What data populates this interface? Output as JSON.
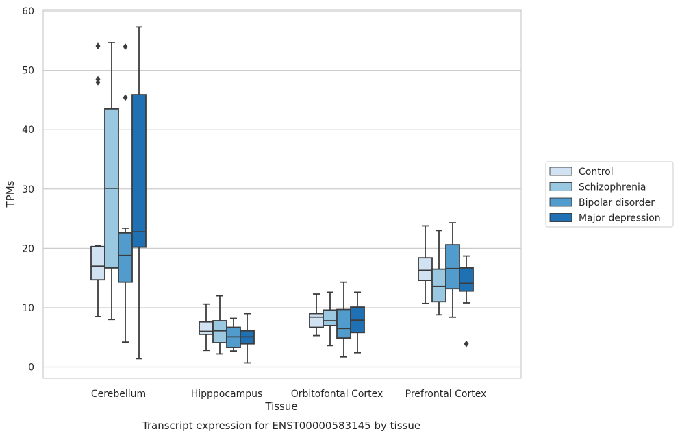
{
  "chart_data": {
    "type": "box",
    "xlabel": "Tissue",
    "ylabel": "TPMs",
    "caption": "Transcript expression for ENST00000583145 by tissue",
    "ylim": [
      -2,
      60.3
    ],
    "yticks": [
      0,
      10,
      20,
      30,
      40,
      50,
      60
    ],
    "grid": "horizontal",
    "legend_position": "right",
    "categories": [
      "Cerebellum",
      "Hipppocampus",
      "Orbitofontal Cortex",
      "Prefrontal Cortex"
    ],
    "series": [
      {
        "name": "Control",
        "color": "#d1e2f2",
        "boxes": [
          {
            "whislo": 8.5,
            "q1": 14.7,
            "med": 17.0,
            "q3": 20.3,
            "whishi": 20.4,
            "fliers": [
              54.1,
              48.5,
              48.0
            ]
          },
          {
            "whislo": 2.8,
            "q1": 5.5,
            "med": 6.0,
            "q3": 7.6,
            "whishi": 10.6,
            "fliers": []
          },
          {
            "whislo": 5.3,
            "q1": 6.7,
            "med": 8.4,
            "q3": 9.0,
            "whishi": 12.3,
            "fliers": []
          },
          {
            "whislo": 10.7,
            "q1": 14.6,
            "med": 16.3,
            "q3": 18.4,
            "whishi": 23.8,
            "fliers": []
          }
        ]
      },
      {
        "name": "Schizophrenia",
        "color": "#9ac8e0",
        "boxes": [
          {
            "whislo": 8.0,
            "q1": 16.7,
            "med": 30.1,
            "q3": 43.5,
            "whishi": 54.7,
            "fliers": []
          },
          {
            "whislo": 2.2,
            "q1": 4.1,
            "med": 6.1,
            "q3": 7.8,
            "whishi": 12.0,
            "fliers": []
          },
          {
            "whislo": 3.6,
            "q1": 7.0,
            "med": 7.8,
            "q3": 9.6,
            "whishi": 12.6,
            "fliers": []
          },
          {
            "whislo": 8.8,
            "q1": 11.0,
            "med": 13.6,
            "q3": 16.5,
            "whishi": 23.0,
            "fliers": []
          }
        ]
      },
      {
        "name": "Bipolar disorder",
        "color": "#519ccc",
        "boxes": [
          {
            "whislo": 4.2,
            "q1": 14.3,
            "med": 18.8,
            "q3": 22.6,
            "whishi": 23.4,
            "fliers": [
              54.0,
              45.4
            ]
          },
          {
            "whislo": 2.7,
            "q1": 3.3,
            "med": 5.1,
            "q3": 6.7,
            "whishi": 8.2,
            "fliers": []
          },
          {
            "whislo": 1.7,
            "q1": 4.9,
            "med": 6.5,
            "q3": 9.7,
            "whishi": 14.3,
            "fliers": []
          },
          {
            "whislo": 8.4,
            "q1": 13.2,
            "med": 16.6,
            "q3": 20.6,
            "whishi": 24.3,
            "fliers": []
          }
        ]
      },
      {
        "name": "Major depression",
        "color": "#2070b4",
        "boxes": [
          {
            "whislo": 1.4,
            "q1": 20.2,
            "med": 22.8,
            "q3": 45.9,
            "whishi": 57.3,
            "fliers": []
          },
          {
            "whislo": 0.7,
            "q1": 3.9,
            "med": 5.1,
            "q3": 6.1,
            "whishi": 9.0,
            "fliers": []
          },
          {
            "whislo": 2.4,
            "q1": 5.8,
            "med": 7.9,
            "q3": 10.1,
            "whishi": 12.6,
            "fliers": []
          },
          {
            "whislo": 10.8,
            "q1": 12.8,
            "med": 14.1,
            "q3": 16.7,
            "whishi": 18.7,
            "fliers": [
              3.9
            ]
          }
        ]
      }
    ]
  }
}
